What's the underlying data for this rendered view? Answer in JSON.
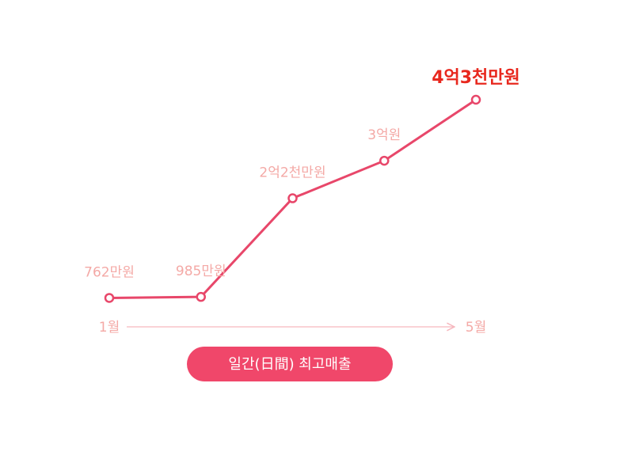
{
  "chart_data": {
    "type": "line",
    "categories": [
      "1월",
      null,
      null,
      null,
      "5월"
    ],
    "values": [
      762,
      985,
      22000,
      30000,
      43000
    ],
    "value_labels": [
      "762만원",
      "985만원",
      "2억2천만원",
      "3억원",
      "4억3천만원"
    ],
    "color": "#e8476a",
    "label_color": "#f4a9a6",
    "highlight_color": "#e8281e"
  },
  "button": {
    "label": "일간(日間) 최고매출"
  }
}
